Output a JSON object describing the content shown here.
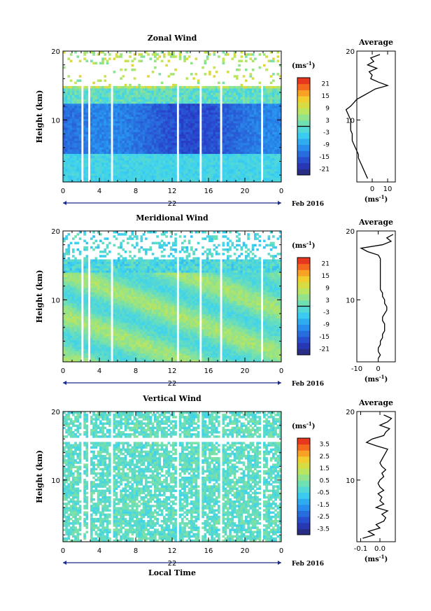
{
  "figure": {
    "date_label": "Feb 2016",
    "bottom_label": "Local Time",
    "units_label": "(ms",
    "units_exp": "-1",
    "units_close": ")"
  },
  "chart_data": [
    {
      "type": "heatmap",
      "title": "Zonal Wind",
      "ylabel": "Height (km)",
      "xlabel": "Local Time",
      "x_ticks": [
        "0",
        "4",
        "8",
        "12",
        "16",
        "20",
        "0"
      ],
      "day_label": "22",
      "y_ticks": [
        "10",
        "20"
      ],
      "ylim": [
        1,
        20
      ],
      "xlim": [
        0,
        24
      ],
      "colorbar": {
        "label_ticks": [
          "21",
          "15",
          "9",
          "3",
          "-3",
          "-9",
          "-15",
          "-21"
        ],
        "range": [
          -24,
          24
        ],
        "zero_line": true
      },
      "profile": {
        "title": "Average",
        "x_ticks": [
          "0",
          "10"
        ],
        "xlim": [
          -10,
          15
        ],
        "y_ticks": [
          "10",
          "20"
        ],
        "xlabel": "(ms-1)",
        "heights": [
          1.5,
          2,
          2.5,
          3,
          3.5,
          4,
          4.5,
          5,
          5.5,
          6,
          6.5,
          7,
          7.5,
          8,
          8.5,
          9,
          9.5,
          10,
          10.5,
          11,
          11.5,
          12,
          12.5,
          13,
          13.5,
          14,
          14.5,
          15,
          15.5,
          16,
          16.5,
          17,
          17.5,
          18,
          18.5,
          19,
          19.5
        ],
        "values": [
          -3,
          -4,
          -5,
          -6,
          -7,
          -8,
          -9,
          -9,
          -10,
          -11,
          -12,
          -13,
          -13,
          -13,
          -14,
          -14,
          -14,
          -14,
          -15,
          -16,
          -17,
          -14,
          -12,
          -10,
          -6,
          -2,
          2,
          10,
          4,
          -1,
          0,
          -2,
          3,
          -3,
          1,
          -1,
          5
        ]
      }
    },
    {
      "type": "heatmap",
      "title": "Meridional Wind",
      "ylabel": "Height (km)",
      "x_ticks": [
        "0",
        "4",
        "8",
        "12",
        "16",
        "20",
        "0"
      ],
      "day_label": "22",
      "y_ticks": [
        "10",
        "20"
      ],
      "ylim": [
        1,
        20
      ],
      "xlim": [
        0,
        24
      ],
      "colorbar": {
        "label_ticks": [
          "21",
          "15",
          "9",
          "3",
          "-3",
          "-9",
          "-15",
          "-21"
        ],
        "range": [
          -24,
          24
        ],
        "zero_line": true
      },
      "profile": {
        "title": "Average",
        "x_ticks": [
          "-10",
          "0"
        ],
        "xlim": [
          -10,
          8
        ],
        "y_ticks": [
          "10",
          "20"
        ],
        "xlabel": "(ms-1)",
        "heights": [
          1.5,
          2,
          2.5,
          3,
          3.5,
          4,
          4.5,
          5,
          5.5,
          6,
          6.5,
          7,
          7.5,
          8,
          8.5,
          9,
          9.5,
          10,
          10.5,
          11,
          11.5,
          12,
          12.5,
          13,
          13.5,
          14,
          14.5,
          15,
          15.5,
          16,
          16.5,
          17,
          17.5,
          18,
          18.5,
          19,
          19.5
        ],
        "values": [
          0,
          1,
          0,
          0,
          1,
          1,
          2,
          2,
          3,
          3,
          3,
          2,
          2,
          3,
          4,
          4,
          3,
          3,
          2,
          2,
          1,
          1,
          1,
          1,
          1,
          1,
          1,
          1,
          1,
          1,
          0,
          -5,
          -8,
          2,
          6,
          4,
          7
        ]
      }
    },
    {
      "type": "heatmap",
      "title": "Vertical Wind",
      "ylabel": "Height (km)",
      "x_ticks": [
        "0",
        "4",
        "8",
        "12",
        "16",
        "20",
        "0"
      ],
      "day_label": "22",
      "y_ticks": [
        "10",
        "20"
      ],
      "ylim": [
        1,
        20
      ],
      "xlim": [
        0,
        24
      ],
      "colorbar": {
        "label_ticks": [
          "3.5",
          "2.5",
          "1.5",
          "0.5",
          "-0.5",
          "-1.5",
          "-2.5",
          "-3.5"
        ],
        "range": [
          -4,
          4
        ],
        "zero_line": false
      },
      "profile": {
        "title": "Average",
        "x_ticks": [
          "-0.1",
          "0.0"
        ],
        "xlim": [
          -0.12,
          0.08
        ],
        "y_ticks": [
          "10",
          "20"
        ],
        "xlabel": "(ms-1)",
        "heights": [
          1.5,
          2,
          2.5,
          3,
          3.5,
          4,
          4.5,
          5,
          5.5,
          6,
          6.5,
          7,
          7.5,
          8,
          8.5,
          9,
          9.5,
          10,
          10.5,
          11,
          11.5,
          12,
          12.5,
          13,
          13.5,
          14,
          14.5,
          15,
          15.5,
          16,
          16.5,
          17,
          17.5,
          18,
          18.5,
          19,
          19.5
        ],
        "values": [
          -0.09,
          -0.03,
          -0.06,
          0.0,
          -0.02,
          0.02,
          0.03,
          0.01,
          0.04,
          -0.02,
          0.02,
          0.0,
          0.01,
          -0.01,
          0.02,
          0.0,
          -0.01,
          0.0,
          0.02,
          0.01,
          0.03,
          0.01,
          0.0,
          0.01,
          0.02,
          0.03,
          0.04,
          -0.02,
          -0.07,
          -0.04,
          0.02,
          0.03,
          0.05,
          0.0,
          0.04,
          0.06,
          0.02
        ]
      }
    }
  ]
}
